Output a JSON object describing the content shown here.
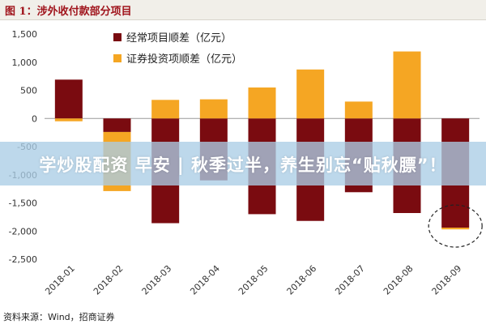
{
  "header": {
    "title": "图 1：涉外收付款部分项目"
  },
  "banner": {
    "text": "学炒股配资 早安 | 秋季过半，养生别忘“贴秋膘”！"
  },
  "footer": {
    "source": "资料来源：Wind，招商证券"
  },
  "colors": {
    "goods": "#7a0b10",
    "securities": "#f5a623",
    "title": "#a0141c"
  },
  "chart_data": {
    "type": "bar",
    "categories": [
      "2018-01",
      "2018-02",
      "2018-03",
      "2018-04",
      "2018-05",
      "2018-06",
      "2018-07",
      "2018-08",
      "2018-09"
    ],
    "series": [
      {
        "name": "经常项目顺差（亿元）",
        "values": [
          690,
          -240,
          -1860,
          -1100,
          -1700,
          -1820,
          -1310,
          -1680,
          -1940
        ]
      },
      {
        "name": "证券投资项顺差（亿元）",
        "values": [
          -50,
          -1050,
          330,
          340,
          550,
          870,
          300,
          1190,
          -30
        ]
      }
    ],
    "ylim": [
      -2500,
      1500
    ],
    "yticks": [
      "1,500",
      "1,000",
      "500",
      "0",
      "-500",
      "-1,000",
      "-1,500",
      "-2,000",
      "-2,500"
    ],
    "ytick_values": [
      1500,
      1000,
      500,
      0,
      -500,
      -1000,
      -1500,
      -2000,
      -2500
    ],
    "legend_position": "top-left",
    "annotation": "dashed circle around 2018-09 bar"
  }
}
